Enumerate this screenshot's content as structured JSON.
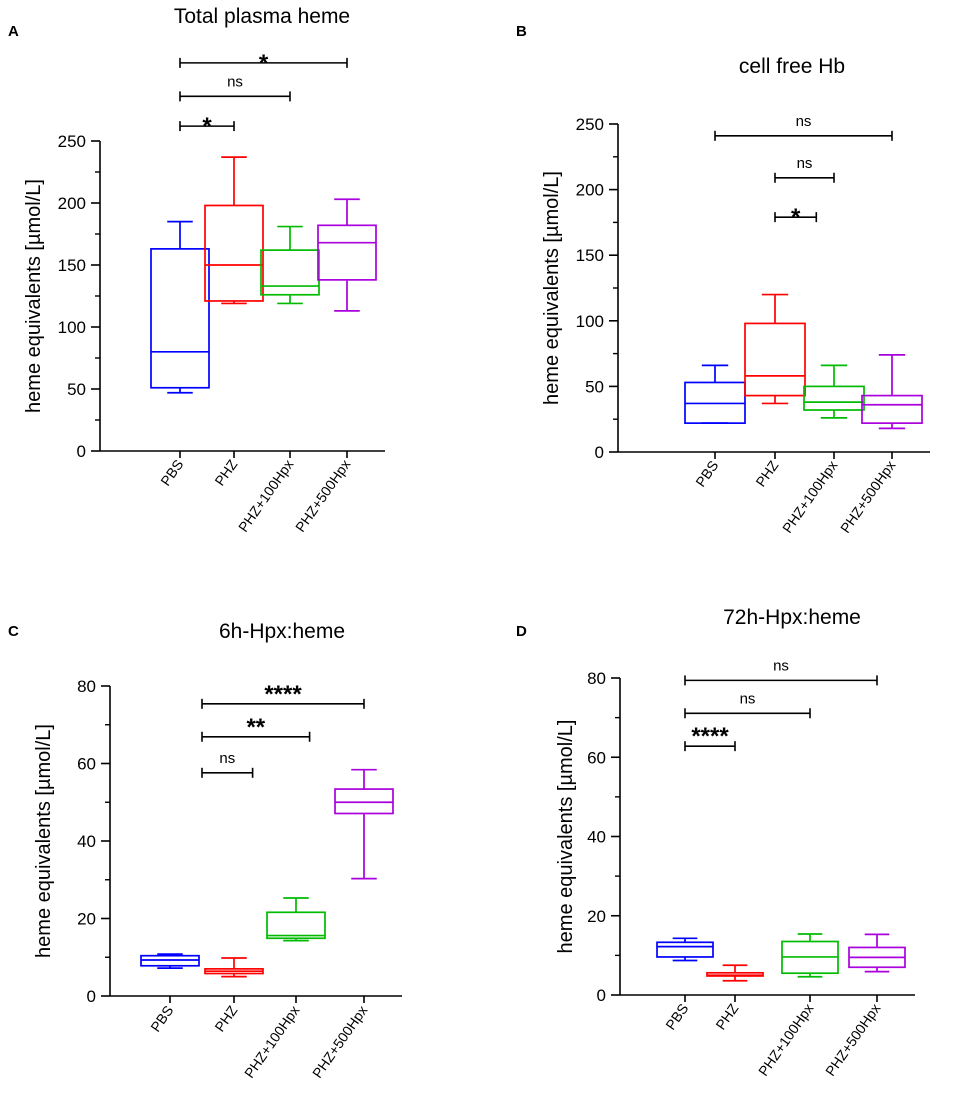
{
  "chart_data": [
    {
      "type": "box",
      "panel_label": "A",
      "title": "Total plasma heme",
      "ylabel": "heme equivalents [µmol/L]",
      "ylim": [
        0,
        250
      ],
      "yticks": [
        "0",
        "50",
        "100",
        "150",
        "200",
        "250"
      ],
      "categories": [
        "PBS",
        "PHZ",
        "PHZ+100Hpx",
        "PHZ+500Hpx"
      ],
      "series": [
        {
          "name": "PBS",
          "color": "#0000ff",
          "min": 47,
          "q1": 51,
          "median": 80,
          "q3": 163,
          "max": 185
        },
        {
          "name": "PHZ",
          "color": "#ff0000",
          "min": 119,
          "q1": 121,
          "median": 150,
          "q3": 198,
          "max": 237
        },
        {
          "name": "PHZ+100Hpx",
          "color": "#00bb00",
          "min": 119,
          "q1": 126,
          "median": 133,
          "q3": 162,
          "max": 181
        },
        {
          "name": "PHZ+500Hpx",
          "color": "#aa00dd",
          "min": 113,
          "q1": 138,
          "median": 168,
          "q3": 182,
          "max": 203
        }
      ],
      "comparisons": [
        {
          "from": 0,
          "to": 3,
          "label": "*",
          "y": 313
        },
        {
          "from": 0,
          "to": 2,
          "label": "ns",
          "y": 286
        },
        {
          "from": 0,
          "to": 1,
          "label": "*",
          "y": 262
        }
      ]
    },
    {
      "type": "box",
      "panel_label": "B",
      "title": "cell free Hb",
      "ylabel": "heme equivalents [µmol/L]",
      "ylim": [
        0,
        250
      ],
      "yticks": [
        "0",
        "50",
        "100",
        "150",
        "200",
        "250"
      ],
      "categories": [
        "PBS",
        "PHZ",
        "PHZ+100Hpx",
        "PHZ+500Hpx"
      ],
      "series": [
        {
          "name": "PBS",
          "color": "#0000ff",
          "min": 22,
          "q1": 22,
          "median": 37,
          "q3": 53,
          "max": 66
        },
        {
          "name": "PHZ",
          "color": "#ff0000",
          "min": 37,
          "q1": 43,
          "median": 58,
          "q3": 98,
          "max": 120
        },
        {
          "name": "PHZ+100Hpx",
          "color": "#00bb00",
          "min": 26,
          "q1": 32,
          "median": 38,
          "q3": 50,
          "max": 66
        },
        {
          "name": "PHZ+500Hpx",
          "color": "#aa00dd",
          "min": 18,
          "q1": 22,
          "median": 36,
          "q3": 43,
          "max": 74
        }
      ],
      "comparisons": [
        {
          "from": 0,
          "to": 3,
          "label": "ns",
          "y": 241
        },
        {
          "from": 1,
          "to": 2,
          "label": "ns",
          "y": 209
        },
        {
          "from": 1,
          "to": 1.7,
          "label": "*",
          "y": 179
        }
      ]
    },
    {
      "type": "box",
      "panel_label": "C",
      "title": "6h-Hpx:heme",
      "ylabel": "heme equivalents [µmol/L]",
      "ylim": [
        0,
        80
      ],
      "yticks": [
        "0",
        "20",
        "40",
        "60",
        "80"
      ],
      "categories": [
        "PBS",
        "PHZ",
        "PHZ+100Hpx",
        "PHZ+500Hpx"
      ],
      "series": [
        {
          "name": "PBS",
          "color": "#0000ff",
          "min": 7.2,
          "q1": 7.8,
          "median": 9.3,
          "q3": 10.4,
          "max": 10.8
        },
        {
          "name": "PHZ",
          "color": "#ff0000",
          "min": 5,
          "q1": 5.8,
          "median": 6.4,
          "q3": 7,
          "max": 9.8
        },
        {
          "name": "PHZ+100Hpx",
          "color": "#00bb00",
          "min": 14.3,
          "q1": 14.9,
          "median": 15.6,
          "q3": 21.6,
          "max": 25.3
        },
        {
          "name": "PHZ+500Hpx",
          "color": "#aa00dd",
          "min": 30.3,
          "q1": 47.1,
          "median": 50,
          "q3": 53.4,
          "max": 58.4
        }
      ],
      "comparisons": [
        {
          "from": 0.5,
          "to": 3,
          "label": "****",
          "y": 75.4
        },
        {
          "from": 0.5,
          "to": 2.2,
          "label": "**",
          "y": 66.9
        },
        {
          "from": 0.5,
          "to": 1.3,
          "label": "ns",
          "y": 57.6
        }
      ]
    },
    {
      "type": "box",
      "panel_label": "D",
      "title": "72h-Hpx:heme",
      "ylabel": "heme equivalents [µmol/L]",
      "ylim": [
        0,
        80
      ],
      "yticks": [
        "0",
        "20",
        "40",
        "60",
        "80"
      ],
      "categories": [
        "PBS",
        "PHZ",
        "PHZ+100Hpx",
        "PHZ+500Hpx"
      ],
      "series": [
        {
          "name": "PBS",
          "color": "#0000ff",
          "min": 8.7,
          "q1": 9.6,
          "median": 12.2,
          "q3": 13.3,
          "max": 14.3
        },
        {
          "name": "PHZ",
          "color": "#ff0000",
          "min": 3.6,
          "q1": 4.8,
          "median": 5,
          "q3": 5.6,
          "max": 7.5
        },
        {
          "name": "PHZ+100Hpx",
          "color": "#00bb00",
          "min": 4.6,
          "q1": 5.5,
          "median": 9.6,
          "q3": 13.5,
          "max": 15.4
        },
        {
          "name": "PHZ+500Hpx",
          "color": "#aa00dd",
          "min": 5.9,
          "q1": 7,
          "median": 9.5,
          "q3": 12,
          "max": 15.3
        }
      ],
      "comparisons": [
        {
          "from": 0,
          "to": 3,
          "label": "ns",
          "y": 79.4
        },
        {
          "from": 0,
          "to": 2,
          "label": "ns",
          "y": 71.1
        },
        {
          "from": 0,
          "to": 1,
          "label": "****",
          "y": 62.8
        }
      ]
    }
  ]
}
